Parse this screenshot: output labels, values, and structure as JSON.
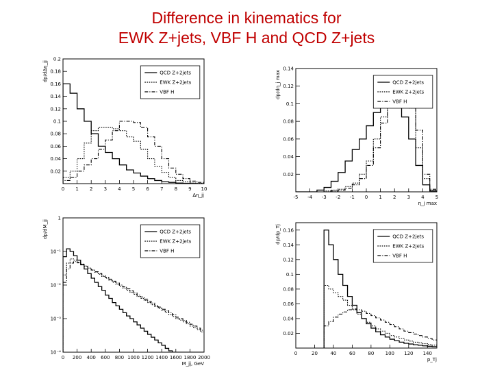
{
  "slide": {
    "title_line1": "Difference in kinematics for",
    "title_line2": "EWK Z+jets, VBF H and QCD Z+jets"
  },
  "legend_styles": {
    "QCD Z+2jets": "solid",
    "EWK Z+2jets": "dotted",
    "VBF H": "dashdot"
  },
  "chart_data": [
    {
      "type": "line",
      "ylabel": "dp/dΔη_jj",
      "xlabel": "Δη_jj",
      "xlim": [
        0,
        10
      ],
      "ylim": [
        0,
        0.2
      ],
      "xticks": [
        0,
        1,
        2,
        3,
        4,
        5,
        6,
        7,
        8,
        9,
        10
      ],
      "yticks": [
        0.02,
        0.04,
        0.06,
        0.08,
        0.1,
        0.12,
        0.14,
        0.16,
        0.18,
        0.2
      ],
      "ytick_labels": [
        "0.02",
        "0.04",
        "0.06",
        "0.08",
        "0.1",
        "0.12",
        "0.14",
        "0.16",
        "0.18",
        "0.2"
      ],
      "log_y": false,
      "legend_position": "top-right",
      "bin_edges": [
        0,
        0.5,
        1,
        1.5,
        2,
        2.5,
        3,
        3.5,
        4,
        4.5,
        5,
        5.5,
        6,
        6.5,
        7,
        7.5,
        8,
        8.5,
        9,
        9.5,
        10
      ],
      "series": [
        {
          "name": "QCD Z+2jets",
          "style": "solid",
          "values": [
            0.16,
            0.145,
            0.12,
            0.1,
            0.08,
            0.06,
            0.05,
            0.04,
            0.03,
            0.022,
            0.017,
            0.012,
            0.008,
            0.005,
            0.003,
            0.002,
            0.001,
            0.0005,
            0.0003,
            0.0001
          ]
        },
        {
          "name": "EWK Z+2jets",
          "style": "dotted",
          "values": [
            0.01,
            0.02,
            0.04,
            0.065,
            0.085,
            0.09,
            0.09,
            0.088,
            0.085,
            0.075,
            0.068,
            0.055,
            0.04,
            0.028,
            0.018,
            0.01,
            0.005,
            0.003,
            0.001,
            0.0005
          ]
        },
        {
          "name": "VBF H",
          "style": "dashdot",
          "values": [
            0.005,
            0.01,
            0.02,
            0.03,
            0.04,
            0.055,
            0.07,
            0.085,
            0.1,
            0.1,
            0.098,
            0.09,
            0.075,
            0.06,
            0.04,
            0.025,
            0.015,
            0.008,
            0.004,
            0.002
          ]
        }
      ]
    },
    {
      "type": "line",
      "ylabel": "dp/dη_j max",
      "xlabel": "η_j max",
      "xlim": [
        -5,
        5
      ],
      "ylim": [
        0,
        0.14
      ],
      "xticks": [
        -5,
        -4,
        -3,
        -2,
        -1,
        0,
        1,
        2,
        3,
        4,
        5
      ],
      "yticks": [
        0.02,
        0.04,
        0.06,
        0.08,
        0.1,
        0.12,
        0.14
      ],
      "ytick_labels": [
        "0.02",
        "0.04",
        "0.06",
        "0.08",
        "0.1",
        "0.12",
        "0.14"
      ],
      "log_y": false,
      "legend_position": "top-right",
      "bin_edges": [
        -5,
        -4.5,
        -4,
        -3.5,
        -3,
        -2.5,
        -2,
        -1.5,
        -1,
        -0.5,
        0,
        0.5,
        1,
        1.5,
        2,
        2.5,
        3,
        3.5,
        4,
        4.5,
        5
      ],
      "series": [
        {
          "name": "QCD Z+2jets",
          "style": "solid",
          "values": [
            0,
            0,
            0,
            0.002,
            0.005,
            0.012,
            0.022,
            0.035,
            0.048,
            0.06,
            0.075,
            0.09,
            0.1,
            0.108,
            0.1,
            0.085,
            0.06,
            0.03,
            0.008,
            0.001
          ]
        },
        {
          "name": "EWK Z+2jets",
          "style": "dotted",
          "values": [
            0,
            0,
            0,
            0,
            0.001,
            0.002,
            0.003,
            0.006,
            0.01,
            0.02,
            0.035,
            0.06,
            0.085,
            0.11,
            0.125,
            0.115,
            0.095,
            0.05,
            0.015,
            0.002
          ]
        },
        {
          "name": "VBF H",
          "style": "dashdot",
          "values": [
            0,
            0,
            0,
            0,
            0,
            0.001,
            0.002,
            0.004,
            0.008,
            0.015,
            0.03,
            0.05,
            0.078,
            0.105,
            0.13,
            0.128,
            0.11,
            0.07,
            0.02,
            0.003
          ]
        }
      ]
    },
    {
      "type": "line",
      "ylabel": "dp/dM_jj",
      "xlabel": "M_jj, GeV",
      "xlim": [
        0,
        2000
      ],
      "ylim": [
        0.0001,
        1
      ],
      "xticks": [
        0,
        200,
        400,
        600,
        800,
        1000,
        1200,
        1400,
        1600,
        1800,
        2000
      ],
      "yticks": [
        0.0001,
        0.001,
        0.01,
        0.1,
        1
      ],
      "ytick_labels": [
        "10⁻⁴",
        "10⁻³",
        "10⁻²",
        "10⁻¹",
        "1"
      ],
      "log_y": true,
      "legend_position": "top-right",
      "bin_edges": [
        0,
        50,
        100,
        150,
        200,
        250,
        300,
        350,
        400,
        450,
        500,
        550,
        600,
        650,
        700,
        750,
        800,
        850,
        900,
        950,
        1000,
        1050,
        1100,
        1150,
        1200,
        1250,
        1300,
        1350,
        1400,
        1450,
        1500,
        1550,
        1600,
        1650,
        1700,
        1750,
        1800,
        1850,
        1900,
        1950,
        2000
      ],
      "series": [
        {
          "name": "QCD Z+2jets",
          "style": "solid",
          "values": [
            0.07,
            0.12,
            0.1,
            0.075,
            0.055,
            0.04,
            0.03,
            0.022,
            0.016,
            0.012,
            0.009,
            0.007,
            0.005,
            0.004,
            0.003,
            0.0024,
            0.0019,
            0.0015,
            0.0012,
            0.001,
            0.0008,
            0.00065,
            0.00052,
            0.00042,
            0.00034,
            0.00028,
            0.00023,
            0.00019,
            0.00016,
            0.00013,
            0.00011,
            0.0001,
            0.0001,
            0.0001,
            0.0001,
            0.0001,
            0.0001,
            0.0001,
            0.0001,
            0.0001
          ]
        },
        {
          "name": "EWK Z+2jets",
          "style": "dotted",
          "values": [
            0.02,
            0.045,
            0.06,
            0.055,
            0.048,
            0.042,
            0.037,
            0.032,
            0.028,
            0.024,
            0.021,
            0.018,
            0.016,
            0.014,
            0.012,
            0.0105,
            0.0092,
            0.008,
            0.007,
            0.0061,
            0.0053,
            0.0046,
            0.004,
            0.0035,
            0.003,
            0.0026,
            0.0023,
            0.002,
            0.00175,
            0.0015,
            0.0013,
            0.00115,
            0.001,
            0.0009,
            0.0008,
            0.0007,
            0.0006,
            0.00053,
            0.00047,
            0.0004
          ]
        },
        {
          "name": "VBF H",
          "style": "dashdot",
          "values": [
            0.012,
            0.03,
            0.045,
            0.05,
            0.046,
            0.041,
            0.036,
            0.032,
            0.028,
            0.025,
            0.022,
            0.019,
            0.017,
            0.015,
            0.013,
            0.0115,
            0.01,
            0.0088,
            0.0077,
            0.0067,
            0.0058,
            0.005,
            0.0044,
            0.0038,
            0.0033,
            0.0029,
            0.0025,
            0.0022,
            0.0019,
            0.0017,
            0.0015,
            0.0013,
            0.0011,
            0.001,
            0.00088,
            0.00078,
            0.00068,
            0.0006,
            0.00052,
            0.00045
          ]
        }
      ]
    },
    {
      "type": "line",
      "ylabel": "dp/dp_Tj",
      "xlabel": "p_Tj",
      "xlim": [
        0,
        150
      ],
      "ylim": [
        0,
        0.17
      ],
      "xticks": [
        0,
        20,
        40,
        60,
        80,
        100,
        120,
        140
      ],
      "yticks": [
        0.02,
        0.04,
        0.06,
        0.08,
        0.1,
        0.12,
        0.14,
        0.16
      ],
      "ytick_labels": [
        "0.02",
        "0.04",
        "0.06",
        "0.08",
        "0.1",
        "0.12",
        "0.14",
        "0.16"
      ],
      "log_y": false,
      "legend_position": "top-right",
      "bin_edges": [
        30,
        35,
        40,
        45,
        50,
        55,
        60,
        65,
        70,
        75,
        80,
        85,
        90,
        95,
        100,
        105,
        110,
        115,
        120,
        125,
        130,
        135,
        140,
        145,
        150
      ],
      "series": [
        {
          "name": "QCD Z+2jets",
          "style": "solid",
          "values": [
            0.16,
            0.14,
            0.12,
            0.1,
            0.085,
            0.07,
            0.058,
            0.048,
            0.04,
            0.033,
            0.027,
            0.022,
            0.018,
            0.015,
            0.012,
            0.01,
            0.008,
            0.0065,
            0.0055,
            0.0045,
            0.0038,
            0.003,
            0.0025,
            0.002
          ]
        },
        {
          "name": "EWK Z+2jets",
          "style": "dotted",
          "values": [
            0.085,
            0.08,
            0.075,
            0.07,
            0.065,
            0.058,
            0.052,
            0.046,
            0.04,
            0.035,
            0.03,
            0.026,
            0.023,
            0.02,
            0.017,
            0.015,
            0.013,
            0.011,
            0.0095,
            0.008,
            0.007,
            0.006,
            0.005,
            0.004
          ]
        },
        {
          "name": "VBF H",
          "style": "dashdot",
          "values": [
            0.03,
            0.036,
            0.042,
            0.046,
            0.049,
            0.052,
            0.053,
            0.052,
            0.05,
            0.047,
            0.044,
            0.041,
            0.038,
            0.035,
            0.032,
            0.029,
            0.026,
            0.023,
            0.021,
            0.019,
            0.017,
            0.015,
            0.013,
            0.011
          ]
        }
      ]
    }
  ]
}
